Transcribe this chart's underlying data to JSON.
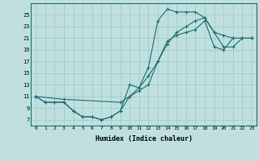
{
  "bg_color": "#c0e0e0",
  "line_color": "#1a6e6a",
  "grid_color": "#a0cccc",
  "xlabel": "Humidex (Indice chaleur)",
  "xlim": [
    -0.5,
    23.5
  ],
  "ylim": [
    6,
    27
  ],
  "yticks": [
    7,
    9,
    11,
    13,
    15,
    17,
    19,
    21,
    23,
    25
  ],
  "xticks": [
    0,
    1,
    2,
    3,
    4,
    5,
    6,
    7,
    8,
    9,
    10,
    11,
    12,
    13,
    14,
    15,
    16,
    17,
    18,
    19,
    20,
    21,
    22,
    23
  ],
  "line1_x": [
    0,
    1,
    2,
    3,
    4,
    5,
    6,
    7,
    8,
    9,
    10,
    11,
    12,
    13,
    14,
    15,
    16,
    17,
    18,
    19,
    20,
    21,
    22,
    23
  ],
  "line1_y": [
    11,
    10,
    10,
    10,
    8.5,
    7.5,
    7.5,
    7,
    7.5,
    8.5,
    13,
    12.5,
    16,
    24,
    26,
    25.5,
    25.5,
    25.5,
    24.5,
    22,
    21.5,
    21,
    21,
    21
  ],
  "line2_x": [
    0,
    1,
    2,
    3,
    4,
    5,
    6,
    7,
    8,
    9,
    10,
    11,
    12,
    13,
    14,
    15,
    16,
    17,
    18,
    19,
    20,
    21,
    22,
    23
  ],
  "line2_y": [
    11,
    10,
    10,
    10,
    8.5,
    7.5,
    7.5,
    7,
    7.5,
    8.5,
    11,
    12,
    13,
    17,
    20.5,
    21.5,
    22,
    22.5,
    24,
    19.5,
    19,
    21,
    21,
    21
  ],
  "line3_x": [
    0,
    3,
    9,
    10,
    11,
    12,
    13,
    14,
    15,
    16,
    17,
    18,
    19,
    20,
    21,
    22,
    23
  ],
  "line3_y": [
    11,
    10.5,
    10,
    11,
    12.5,
    14.5,
    17,
    20,
    22,
    23,
    24,
    24.5,
    22,
    19.5,
    19.5,
    21,
    21
  ]
}
